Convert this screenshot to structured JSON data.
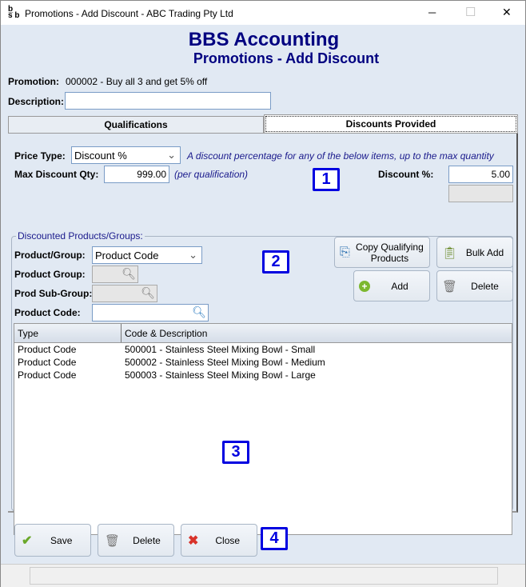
{
  "window": {
    "title": "Promotions - Add Discount - ABC Trading Pty Ltd",
    "minimize": "─",
    "maximize": "☐",
    "close": "✕",
    "logo": "bs b"
  },
  "header": {
    "app": "BBS Accounting",
    "page": "Promotions - Add Discount"
  },
  "promotion": {
    "label": "Promotion:",
    "value": "000002 - Buy all 3 and get 5% off"
  },
  "description": {
    "label": "Description:",
    "value": ""
  },
  "tabs": [
    {
      "label": "Qualifications",
      "active": false
    },
    {
      "label": "Discounts Provided",
      "active": true
    }
  ],
  "pricing": {
    "price_type_label": "Price Type:",
    "price_type_value": "Discount %",
    "price_type_hint": "A discount percentage for any of the below items, up to the max quantity",
    "max_qty_label": "Max Discount Qty:",
    "max_qty_value": "999.00",
    "max_qty_hint": "(per qualification)",
    "discount_label": "Discount %:",
    "discount_value": "5.00",
    "extra_value": ""
  },
  "group": {
    "legend": "Discounted Products/Groups:",
    "product_group_type_label": "Product/Group:",
    "product_group_type_value": "Product Code",
    "product_group_label": "Product Group:",
    "prod_sub_group_label": "Prod Sub-Group:",
    "product_code_label": "Product Code:",
    "product_code_value": "",
    "buttons": {
      "copy": "Copy Qualifying Products",
      "bulk_add": "Bulk Add",
      "add": "Add",
      "delete": "Delete"
    }
  },
  "table": {
    "columns": [
      "Type",
      "Code & Description"
    ],
    "rows": [
      [
        "Product Code",
        "500001 - Stainless Steel Mixing Bowl - Small"
      ],
      [
        "Product Code",
        "500002 - Stainless Steel Mixing Bowl - Medium"
      ],
      [
        "Product Code",
        "500003 - Stainless Steel Mixing Bowl - Large"
      ]
    ]
  },
  "footer": {
    "save": "Save",
    "delete": "Delete",
    "close": "Close"
  },
  "markers": [
    "1",
    "2",
    "3",
    "4"
  ],
  "colors": {
    "heading": "#000080",
    "hint": "#1a1a8c",
    "marker": "#0000e0"
  }
}
